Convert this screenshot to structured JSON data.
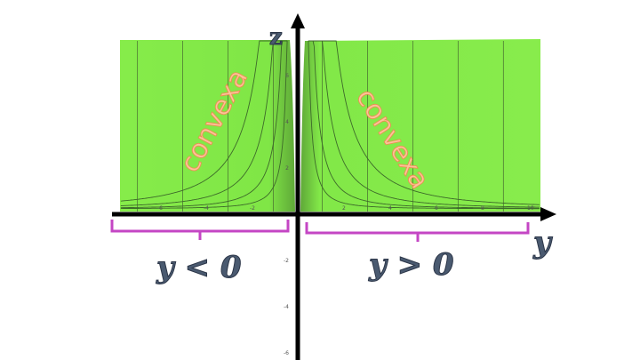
{
  "axes": {
    "horizontal_label": "y",
    "vertical_label": "z"
  },
  "ticks": {
    "horizontal": [
      "-6",
      "-4",
      "-2",
      "2",
      "4",
      "6",
      "8",
      "10"
    ],
    "vertical": [
      "2",
      "4",
      "6",
      "-2",
      "-4",
      "-6"
    ]
  },
  "regions": {
    "left_label": "convexa",
    "right_label": "convexa"
  },
  "conditions": {
    "left": "y < 0",
    "right": "y > 0"
  },
  "colors": {
    "surface": "#86e84a",
    "bracket": "#c446c4",
    "axis": "#000000",
    "label_fill": "#fbc49a"
  }
}
